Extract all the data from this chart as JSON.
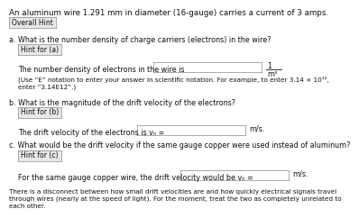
{
  "title": "An aluminum wire 1.291 mm in diameter (16-gauge) carries a current of 3 amps.",
  "overall_hint_btn": "Overall Hint",
  "section_a_label": "a. What is the number density of charge carriers (electrons) in the wire?",
  "hint_a_btn": "Hint for (a)",
  "answer_a_prefix": "The number density of electrons in the wire is",
  "answer_a_note": "(Use “E” notation to enter your answer in scientific notation. For example, to enter 3.14 × 10¹²,\nenter “3.14E12”.)",
  "section_b_label": "b. What is the magnitude of the drift velocity of the electrons?",
  "hint_b_btn": "Hint for (b)",
  "answer_b_prefix": "The drift velocity of the electrons is vₙ =",
  "answer_b_unit": "m/s.",
  "section_c_label": "c. What would be the drift velocity if the same gauge copper were used instead of aluminum?",
  "hint_c_btn": "Hint for (c)",
  "answer_c_prefix": "For the same gauge copper wire, the drift velocity would be vₙ =",
  "answer_c_unit": "m/s.",
  "footer": "There is a disconnect between how small drift velocities are and how quickly electrical signals travel\nthrough wires (nearly at the speed of light). For the moment, treat the two as completely unrelated to\neach other.",
  "bg_color": "#ffffff",
  "box_bg": "#ffffff",
  "box_border": "#888888",
  "btn_bg": "#e8e8e8",
  "btn_border": "#888888",
  "text_color": "#111111",
  "font_size_title": 6.3,
  "font_size_body": 5.8,
  "font_size_small": 5.2,
  "font_size_btn": 5.5
}
